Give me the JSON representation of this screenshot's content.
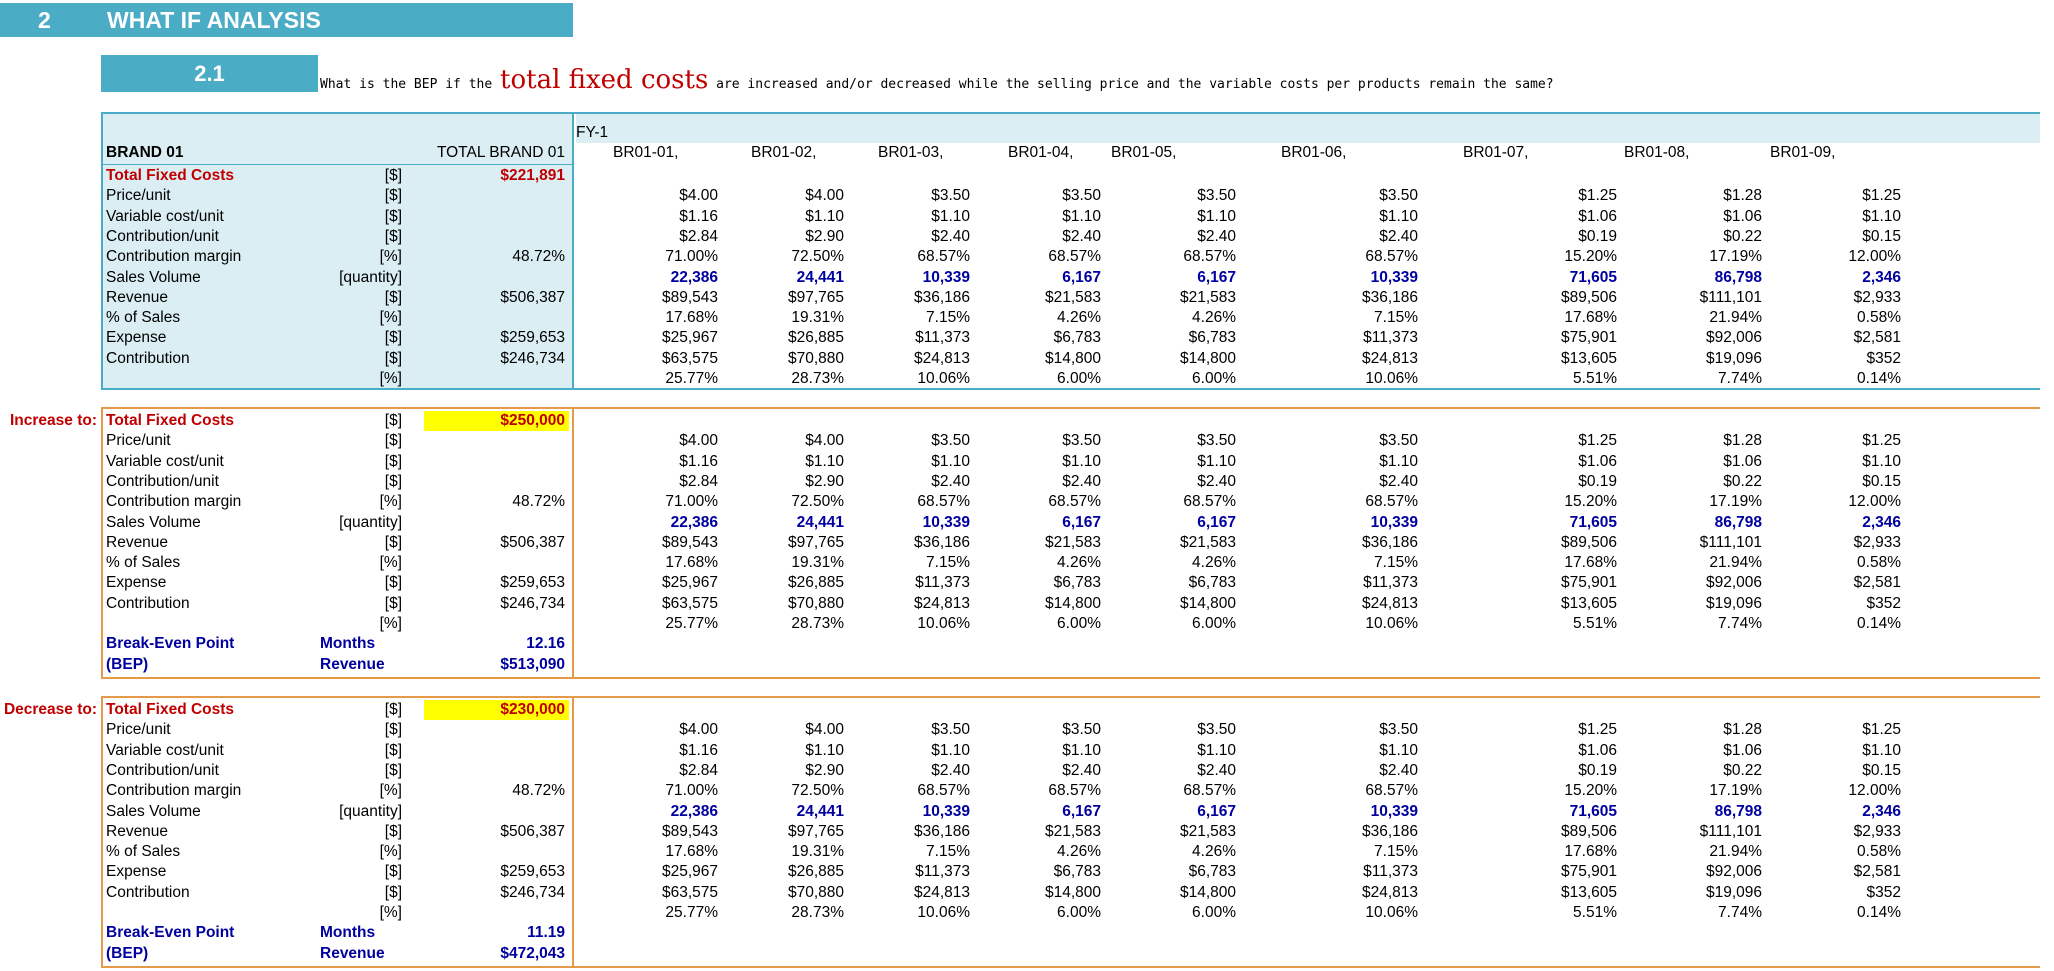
{
  "section": {
    "number": "2",
    "title": "WHAT IF ANALYSIS"
  },
  "subsection": {
    "number": "2.1",
    "question_pre": "What is the BEP if the",
    "question_highlight": "total fixed costs",
    "question_post": "are increased and/or decreased while the selling price and the variable costs per products remain the same?"
  },
  "headers": {
    "brand": "BRAND 01",
    "total": "TOTAL BRAND 01",
    "fy": "FY-1",
    "products": [
      "BR01-01,",
      "BR01-02,",
      "BR01-03,",
      "BR01-04,",
      "BR01-05,",
      "BR01-06,",
      "BR01-07,",
      "BR01-08,",
      "BR01-09,"
    ]
  },
  "row_labels": [
    {
      "label": "Total Fixed Costs",
      "unit": "[$]"
    },
    {
      "label": "Price/unit",
      "unit": "[$]"
    },
    {
      "label": "Variable cost/unit",
      "unit": "[$]"
    },
    {
      "label": "Contribution/unit",
      "unit": "[$]"
    },
    {
      "label": "Contribution margin",
      "unit": "[%]"
    },
    {
      "label": "Sales Volume",
      "unit": "[quantity]"
    },
    {
      "label": "Revenue",
      "unit": "[$]"
    },
    {
      "label": "% of Sales",
      "unit": "[%]"
    },
    {
      "label": "Expense",
      "unit": "[$]"
    },
    {
      "label": "Contribution",
      "unit": "[$]"
    },
    {
      "label": "",
      "unit": "[%]"
    }
  ],
  "totals": [
    "",
    "",
    "",
    "",
    "48.72%",
    "",
    "$506,387",
    "",
    "$259,653",
    "$246,734",
    ""
  ],
  "grid": [
    [
      "$4.00",
      "$4.00",
      "$3.50",
      "$3.50",
      "$3.50",
      "$3.50",
      "$1.25",
      "$1.28",
      "$1.25"
    ],
    [
      "$1.16",
      "$1.10",
      "$1.10",
      "$1.10",
      "$1.10",
      "$1.10",
      "$1.06",
      "$1.06",
      "$1.10"
    ],
    [
      "$2.84",
      "$2.90",
      "$2.40",
      "$2.40",
      "$2.40",
      "$2.40",
      "$0.19",
      "$0.22",
      "$0.15"
    ],
    [
      "71.00%",
      "72.50%",
      "68.57%",
      "68.57%",
      "68.57%",
      "68.57%",
      "15.20%",
      "17.19%",
      "12.00%"
    ],
    [
      "22,386",
      "24,441",
      "10,339",
      "6,167",
      "6,167",
      "10,339",
      "71,605",
      "86,798",
      "2,346"
    ],
    [
      "$89,543",
      "$97,765",
      "$36,186",
      "$21,583",
      "$21,583",
      "$36,186",
      "$89,506",
      "$111,101",
      "$2,933"
    ],
    [
      "17.68%",
      "19.31%",
      "7.15%",
      "4.26%",
      "4.26%",
      "7.15%",
      "17.68%",
      "21.94%",
      "0.58%"
    ],
    [
      "$25,967",
      "$26,885",
      "$11,373",
      "$6,783",
      "$6,783",
      "$11,373",
      "$75,901",
      "$92,006",
      "$2,581"
    ],
    [
      "$63,575",
      "$70,880",
      "$24,813",
      "$14,800",
      "$14,800",
      "$24,813",
      "$13,605",
      "$19,096",
      "$352"
    ],
    [
      "25.77%",
      "28.73%",
      "10.06%",
      "6.00%",
      "6.00%",
      "10.06%",
      "5.51%",
      "7.74%",
      "0.14%"
    ]
  ],
  "blocks": [
    {
      "side_label": "",
      "total_fixed": "$221,891",
      "bep": null
    },
    {
      "side_label": "Increase to:",
      "total_fixed": "$250,000",
      "bep": {
        "label1": "Break-Even Point",
        "label2": "(BEP)",
        "unit1": "Months",
        "unit2": "Revenue",
        "months": "12.16",
        "revenue": "$513,090"
      }
    },
    {
      "side_label": "Decrease to:",
      "total_fixed": "$230,000",
      "bep": {
        "label1": "Break-Even Point",
        "label2": "(BEP)",
        "unit1": "Months",
        "unit2": "Revenue",
        "months": "11.19",
        "revenue": "$472,043"
      }
    }
  ],
  "colors": {
    "teal": "#4bacc6",
    "panel": "#dbeef3",
    "orange": "#e59a4a",
    "red": "#c00000",
    "navy": "#00009f",
    "highlight": "#ffff00"
  }
}
